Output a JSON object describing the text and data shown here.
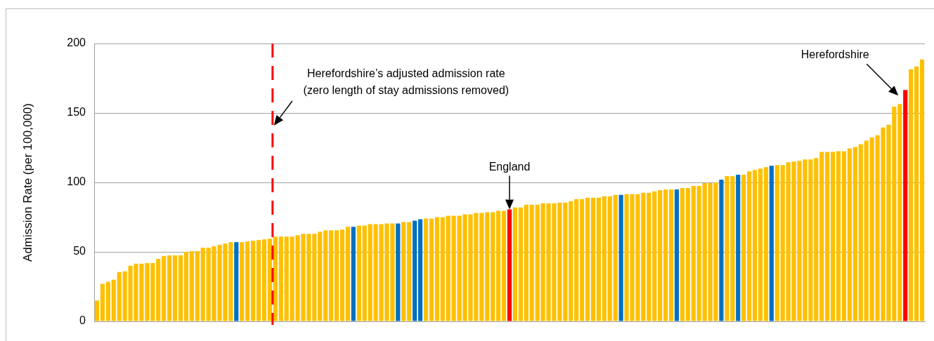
{
  "chart_data": {
    "type": "bar",
    "ylabel": "Admission Rate (per 100,000)",
    "categories": [
      null,
      null,
      null,
      null,
      null,
      null,
      null,
      null,
      null,
      null,
      null,
      null,
      null,
      null,
      null,
      null,
      null,
      null,
      null,
      null,
      null,
      null,
      null,
      null,
      null,
      null,
      null,
      null,
      null,
      null,
      null,
      null,
      null,
      null,
      null,
      null,
      null,
      null,
      null,
      null,
      null,
      null,
      null,
      null,
      null,
      null,
      null,
      null,
      null,
      null,
      null,
      null,
      null,
      null,
      null,
      null,
      null,
      null,
      null,
      null,
      null,
      null,
      null,
      null,
      null,
      null,
      null,
      null,
      null,
      null,
      null,
      null,
      null,
      null,
      null,
      null,
      null,
      null,
      null,
      null,
      null,
      null,
      null,
      null,
      null,
      null,
      null,
      null,
      null,
      null,
      null,
      null,
      null,
      null,
      null,
      null,
      null,
      null,
      null,
      null,
      null,
      null,
      null,
      null,
      null,
      null,
      null,
      null,
      null,
      null,
      null,
      null,
      null,
      null,
      null,
      null,
      null,
      null,
      null,
      null,
      null,
      null,
      null,
      null,
      null,
      null,
      null,
      null,
      null,
      null,
      null,
      null,
      null,
      null,
      null,
      null,
      null,
      null,
      null,
      null,
      null,
      null,
      null,
      null,
      null,
      null,
      null,
      null,
      null
    ],
    "values": [
      15,
      27,
      28.5,
      30,
      35.5,
      36,
      40,
      41.5,
      41.5,
      42,
      42,
      45,
      47,
      47.5,
      47.5,
      47.5,
      50,
      50.5,
      50.5,
      53,
      53,
      54,
      55,
      56,
      57,
      57,
      57,
      57.5,
      58,
      58.5,
      59,
      59.5,
      61,
      61,
      61,
      61,
      62,
      63,
      63,
      63,
      64.5,
      65.5,
      65.5,
      65.5,
      66,
      68,
      68,
      69,
      69,
      70,
      70,
      70,
      70.5,
      70.5,
      70.5,
      71.5,
      71.5,
      72.5,
      73.5,
      74,
      74,
      75,
      75,
      76,
      76,
      76,
      77,
      77,
      78,
      78,
      78.5,
      78.5,
      79.5,
      79.5,
      80.5,
      82,
      82,
      84,
      84,
      84,
      85,
      85,
      85,
      85.5,
      85.5,
      86.5,
      88,
      88,
      89,
      89,
      89,
      90,
      90,
      91,
      91,
      91.5,
      91.5,
      91.5,
      92.5,
      92.5,
      93.5,
      94.5,
      95,
      95,
      95,
      96,
      96,
      97.5,
      97.5,
      99.5,
      99.5,
      100,
      102,
      104.5,
      104.5,
      105.5,
      105.5,
      108,
      109,
      110,
      111,
      112,
      112.5,
      112.5,
      114.5,
      115,
      115.5,
      116.5,
      116.5,
      117.5,
      122,
      122,
      122,
      122.5,
      122.5,
      124.5,
      125.5,
      127.5,
      130,
      132.5,
      134,
      139.5,
      141.5,
      154.5,
      156.5,
      166.5,
      181.5,
      183.5,
      188.5
    ],
    "colors": [
      "#ffc000",
      "#ffc000",
      "#ffc000",
      "#ffc000",
      "#ffc000",
      "#ffc000",
      "#ffc000",
      "#ffc000",
      "#ffc000",
      "#ffc000",
      "#ffc000",
      "#ffc000",
      "#ffc000",
      "#ffc000",
      "#ffc000",
      "#ffc000",
      "#ffc000",
      "#ffc000",
      "#ffc000",
      "#ffc000",
      "#ffc000",
      "#ffc000",
      "#ffc000",
      "#ffc000",
      "#ffc000",
      "#0070c0",
      "#ffc000",
      "#ffc000",
      "#ffc000",
      "#ffc000",
      "#ffc000",
      "#ffc000",
      "#ffc000",
      "#ffc000",
      "#ffc000",
      "#ffc000",
      "#ffc000",
      "#ffc000",
      "#ffc000",
      "#ffc000",
      "#ffc000",
      "#ffc000",
      "#ffc000",
      "#ffc000",
      "#ffc000",
      "#ffc000",
      "#0070c0",
      "#ffc000",
      "#ffc000",
      "#ffc000",
      "#ffc000",
      "#ffc000",
      "#ffc000",
      "#ffc000",
      "#0070c0",
      "#ffc000",
      "#ffc000",
      "#0070c0",
      "#0070c0",
      "#ffc000",
      "#ffc000",
      "#ffc000",
      "#ffc000",
      "#ffc000",
      "#ffc000",
      "#ffc000",
      "#ffc000",
      "#ffc000",
      "#ffc000",
      "#ffc000",
      "#ffc000",
      "#ffc000",
      "#ffc000",
      "#ffc000",
      "#ff0000",
      "#ffc000",
      "#ffc000",
      "#ffc000",
      "#ffc000",
      "#ffc000",
      "#ffc000",
      "#ffc000",
      "#ffc000",
      "#ffc000",
      "#ffc000",
      "#ffc000",
      "#ffc000",
      "#ffc000",
      "#ffc000",
      "#ffc000",
      "#ffc000",
      "#ffc000",
      "#ffc000",
      "#ffc000",
      "#0070c0",
      "#ffc000",
      "#ffc000",
      "#ffc000",
      "#ffc000",
      "#ffc000",
      "#ffc000",
      "#ffc000",
      "#ffc000",
      "#ffc000",
      "#0070c0",
      "#ffc000",
      "#ffc000",
      "#ffc000",
      "#ffc000",
      "#ffc000",
      "#ffc000",
      "#ffc000",
      "#0070c0",
      "#ffc000",
      "#ffc000",
      "#0070c0",
      "#ffc000",
      "#ffc000",
      "#ffc000",
      "#ffc000",
      "#ffc000",
      "#0070c0",
      "#ffc000",
      "#ffc000",
      "#ffc000",
      "#ffc000",
      "#ffc000",
      "#ffc000",
      "#ffc000",
      "#ffc000",
      "#ffc000",
      "#ffc000",
      "#ffc000",
      "#ffc000",
      "#ffc000",
      "#ffc000",
      "#ffc000",
      "#ffc000",
      "#ffc000",
      "#ffc000",
      "#ffc000",
      "#ffc000",
      "#ffc000",
      "#ffc000",
      "#ffc000",
      "#ff0000",
      "#ffc000",
      "#ffc000",
      "#ffc000"
    ],
    "ylim": [
      0,
      200
    ],
    "yticks": [
      0,
      50,
      100,
      150,
      200
    ],
    "grid": "y",
    "tick_labels": "y",
    "annotations": [
      "Herefordshire’s adjusted admission rate\n(zero length of stay admissions removed)",
      "England",
      "Herefordshire"
    ]
  }
}
